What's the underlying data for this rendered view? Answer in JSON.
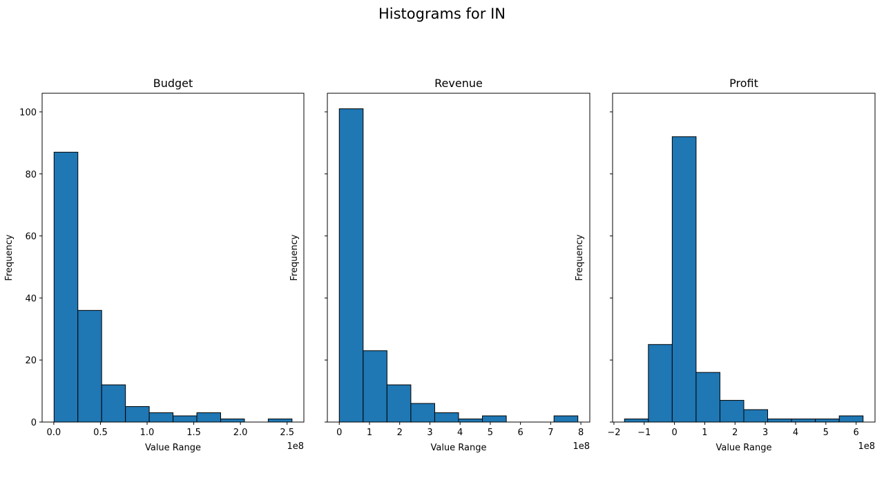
{
  "figure": {
    "title": "Histograms for IN"
  },
  "chart_data": [
    {
      "type": "bar",
      "title": "Budget",
      "xlabel": "Value Range",
      "ylabel": "Frequency",
      "offset_label": "1e8",
      "bar_color": "#1f77b4",
      "edge_color": "#000000",
      "bin_edges": [
        0.003,
        0.258,
        0.513,
        0.768,
        1.023,
        1.278,
        1.533,
        1.788,
        2.043,
        2.298,
        2.553
      ],
      "counts": [
        87,
        36,
        12,
        5,
        3,
        2,
        3,
        1,
        0,
        1
      ],
      "xlim": [
        -0.125,
        2.68
      ],
      "ylim": [
        0,
        106
      ],
      "xticks": [
        0.0,
        0.5,
        1.0,
        1.5,
        2.0,
        2.5
      ],
      "xtick_labels": [
        "0.0",
        "0.5",
        "1.0",
        "1.5",
        "2.0",
        "2.5"
      ],
      "yticks": [
        0,
        20,
        40,
        60,
        80,
        100
      ],
      "ytick_labels": [
        "0",
        "20",
        "40",
        "60",
        "80",
        "100"
      ]
    },
    {
      "type": "bar",
      "title": "Revenue",
      "xlabel": "Value Range",
      "ylabel": "Frequency",
      "offset_label": "1e8",
      "bar_color": "#1f77b4",
      "edge_color": "#000000",
      "bin_edges": [
        0.0,
        0.79,
        1.58,
        2.37,
        3.16,
        3.95,
        4.74,
        5.53,
        6.32,
        7.11,
        7.9
      ],
      "counts": [
        101,
        23,
        12,
        6,
        3,
        1,
        2,
        0,
        0,
        2
      ],
      "xlim": [
        -0.395,
        8.295
      ],
      "ylim": [
        0,
        106
      ],
      "xticks": [
        0,
        1,
        2,
        3,
        4,
        5,
        6,
        7,
        8
      ],
      "xtick_labels": [
        "0",
        "1",
        "2",
        "3",
        "4",
        "5",
        "6",
        "7",
        "8"
      ],
      "yticks": [
        0,
        20,
        40,
        60,
        80,
        100
      ],
      "ytick_labels": [
        "",
        "",
        "",
        "",
        "",
        ""
      ]
    },
    {
      "type": "bar",
      "title": "Profit",
      "xlabel": "Value Range",
      "ylabel": "Frequency",
      "offset_label": "1e8",
      "bar_color": "#1f77b4",
      "edge_color": "#000000",
      "bin_edges": [
        -1.65,
        -0.862,
        -0.074,
        0.714,
        1.502,
        2.29,
        3.078,
        3.866,
        4.654,
        5.442,
        6.23
      ],
      "counts": [
        1,
        25,
        92,
        16,
        7,
        4,
        1,
        1,
        1,
        2
      ],
      "xlim": [
        -2.044,
        6.624
      ],
      "ylim": [
        0,
        106
      ],
      "xticks": [
        -2,
        -1,
        0,
        1,
        2,
        3,
        4,
        5,
        6
      ],
      "xtick_labels": [
        "−2",
        "−1",
        "0",
        "1",
        "2",
        "3",
        "4",
        "5",
        "6"
      ],
      "yticks": [
        0,
        20,
        40,
        60,
        80,
        100
      ],
      "ytick_labels": [
        "",
        "",
        "",
        "",
        "",
        ""
      ]
    }
  ]
}
